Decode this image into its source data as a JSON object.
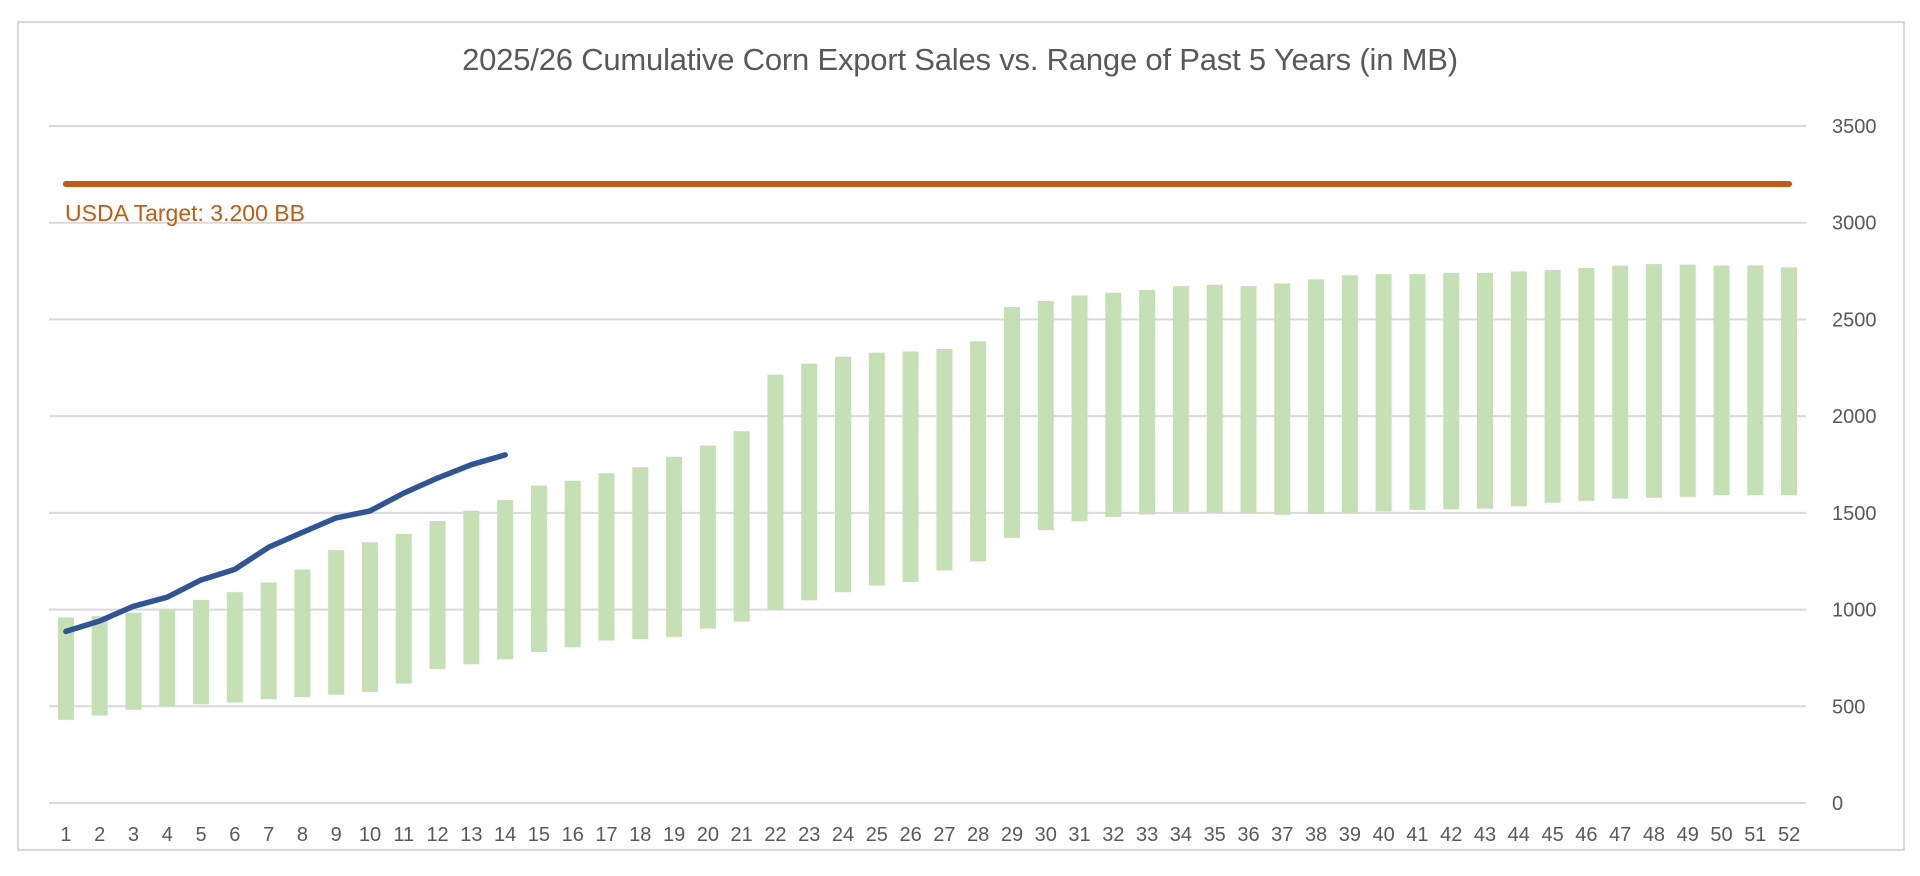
{
  "chart_data": {
    "type": "bar",
    "title": "2025/26 Cumulative Corn Export Sales vs. Range of Past 5 Years (in MB)",
    "xlabel": "",
    "ylabel": "",
    "ylim": [
      0,
      3500
    ],
    "y_ticks": [
      0,
      500,
      1000,
      1500,
      2000,
      2500,
      3000,
      3500
    ],
    "y_axis_side": "right",
    "grid": true,
    "legend": "none",
    "categories": [
      "1",
      "2",
      "3",
      "4",
      "5",
      "6",
      "7",
      "8",
      "9",
      "10",
      "11",
      "12",
      "13",
      "14",
      "15",
      "16",
      "17",
      "18",
      "19",
      "20",
      "21",
      "22",
      "23",
      "24",
      "25",
      "26",
      "27",
      "28",
      "29",
      "30",
      "31",
      "32",
      "33",
      "34",
      "35",
      "36",
      "37",
      "38",
      "39",
      "40",
      "41",
      "42",
      "43",
      "44",
      "45",
      "46",
      "47",
      "48",
      "49",
      "50",
      "51",
      "52"
    ],
    "series": [
      {
        "name": "Range of Past 5 Years",
        "type": "floating-bar",
        "color": "#C5E0B4",
        "low": [
          430,
          452,
          482,
          500,
          510,
          520,
          538,
          548,
          560,
          574,
          617,
          693,
          717,
          743,
          780,
          805,
          840,
          848,
          859,
          902,
          938,
          1000,
          1048,
          1090,
          1124,
          1143,
          1202,
          1249,
          1371,
          1410,
          1457,
          1479,
          1492,
          1504,
          1500,
          1498,
          1490,
          1494,
          1500,
          1507,
          1515,
          1518,
          1522,
          1534,
          1552,
          1562,
          1574,
          1578,
          1583,
          1591,
          1591,
          1591
        ],
        "high": [
          959,
          966,
          984,
          1000,
          1050,
          1090,
          1140,
          1207,
          1307,
          1348,
          1391,
          1458,
          1511,
          1566,
          1641,
          1666,
          1705,
          1736,
          1790,
          1848,
          1922,
          2214,
          2271,
          2307,
          2328,
          2334,
          2347,
          2387,
          2564,
          2595,
          2624,
          2638,
          2652,
          2672,
          2679,
          2672,
          2686,
          2707,
          2728,
          2734,
          2734,
          2741,
          2741,
          2748,
          2755,
          2766,
          2778,
          2786,
          2783,
          2779,
          2779,
          2769
        ]
      },
      {
        "name": "2025/26 Cumulative Export Sales",
        "type": "line",
        "color": "#2F5597",
        "values": [
          887,
          941,
          1017,
          1064,
          1153,
          1208,
          1322,
          1399,
          1474,
          1510,
          1602,
          1680,
          1749,
          1800
        ]
      },
      {
        "name": "USDA Target",
        "type": "hline",
        "color": "#C55A11",
        "value": 3200,
        "span": [
          "1",
          "52"
        ]
      }
    ],
    "annotations": [
      {
        "text": "USDA Target: 3.200 BB",
        "color": "#C55A11",
        "anchor": "below target line, left"
      }
    ]
  },
  "gridline_color": "#d9d9d9",
  "text_color": "#595959"
}
